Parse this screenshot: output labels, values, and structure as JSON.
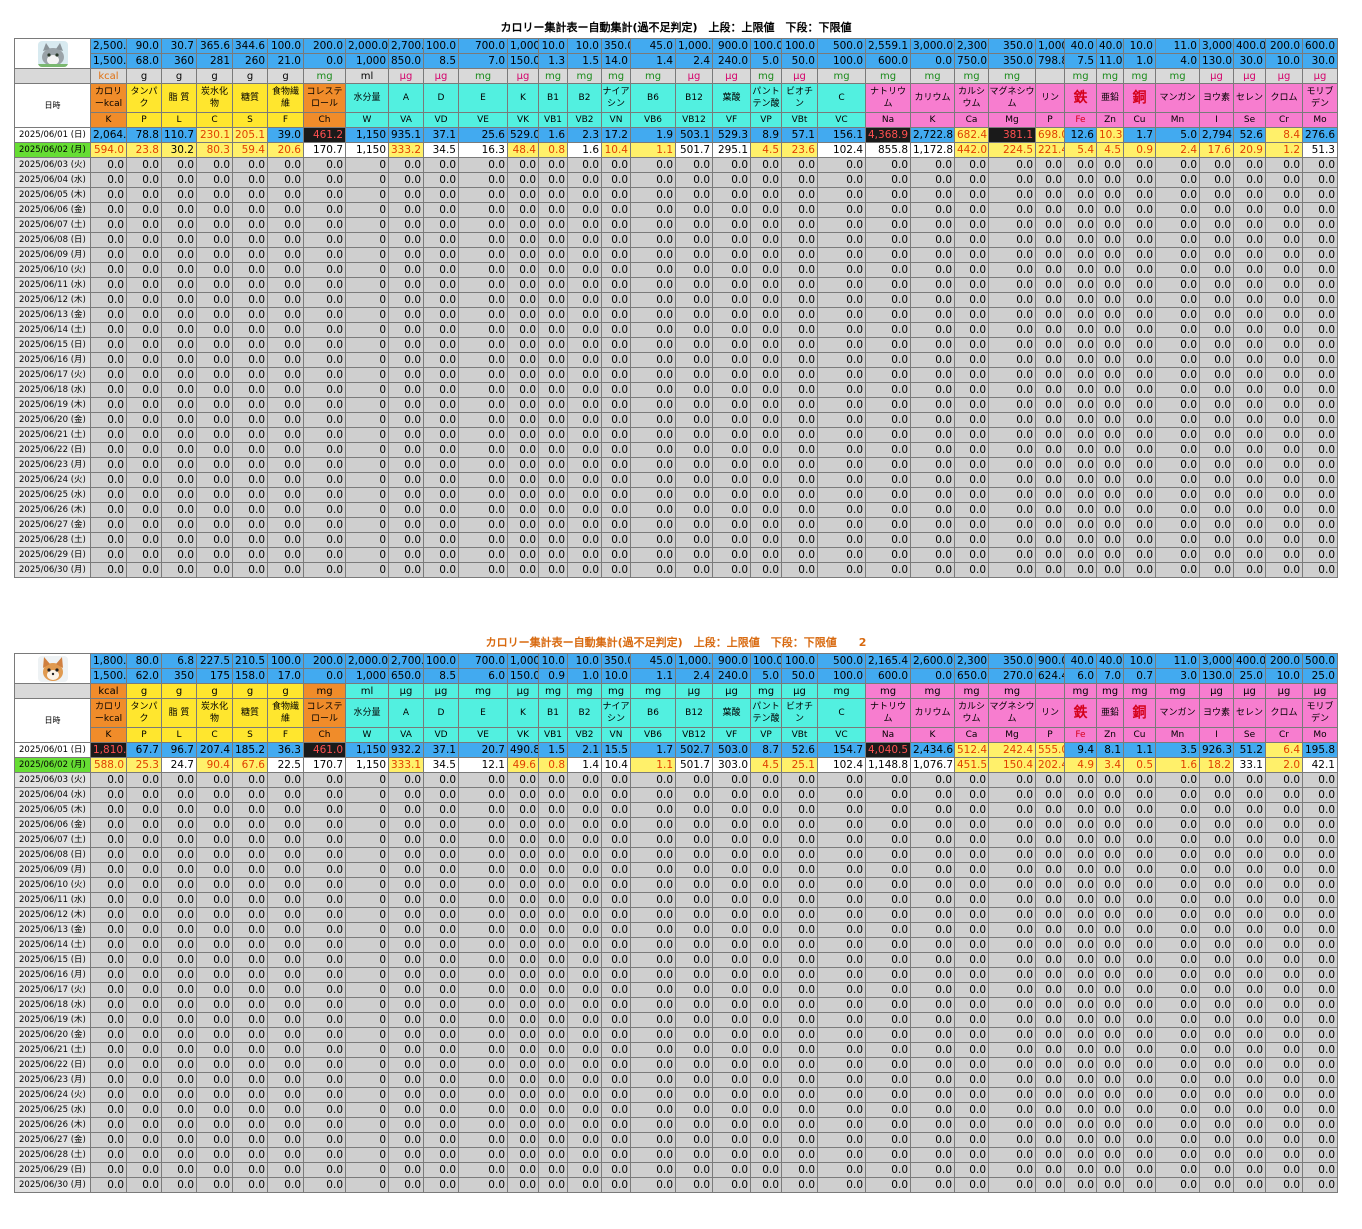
{
  "columns": [
    {
      "unit": "kcal",
      "name": "カロリーkcal",
      "abbr": "K",
      "color": "#f08c2a",
      "uc": "#e07010"
    },
    {
      "unit": "g",
      "name": "タンパク",
      "abbr": "P",
      "color": "#ffe62e",
      "uc": "#000"
    },
    {
      "unit": "g",
      "name": "脂 質",
      "abbr": "L",
      "color": "#ffe62e",
      "uc": "#000"
    },
    {
      "unit": "g",
      "name": "炭水化物",
      "abbr": "C",
      "color": "#ffe62e",
      "uc": "#000"
    },
    {
      "unit": "g",
      "name": "糖質",
      "abbr": "S",
      "color": "#ffe62e",
      "uc": "#000"
    },
    {
      "unit": "g",
      "name": "食物繊維",
      "abbr": "F",
      "color": "#ffe62e",
      "uc": "#000"
    },
    {
      "unit": "mg",
      "name": "コレステロール",
      "abbr": "Ch",
      "color": "#f08c2a",
      "uc": "#1a8a1a"
    },
    {
      "unit": "ml",
      "name": "水分量",
      "abbr": "W",
      "color": "#52f0e0",
      "uc": "#000"
    },
    {
      "unit": "μg",
      "name": "A",
      "abbr": "VA",
      "color": "#52f0e0",
      "uc": "#d4006a"
    },
    {
      "unit": "μg",
      "name": "D",
      "abbr": "VD",
      "color": "#52f0e0",
      "uc": "#d4006a"
    },
    {
      "unit": "mg",
      "name": "E",
      "abbr": "VE",
      "color": "#52f0e0",
      "uc": "#1a8a1a"
    },
    {
      "unit": "μg",
      "name": "K",
      "abbr": "VK",
      "color": "#52f0e0",
      "uc": "#d4006a"
    },
    {
      "unit": "mg",
      "name": "B1",
      "abbr": "VB1",
      "color": "#52f0e0",
      "uc": "#1a8a1a"
    },
    {
      "unit": "mg",
      "name": "B2",
      "abbr": "VB2",
      "color": "#52f0e0",
      "uc": "#1a8a1a"
    },
    {
      "unit": "mg",
      "name": "ナイアシン",
      "abbr": "VN",
      "color": "#52f0e0",
      "uc": "#1a8a1a"
    },
    {
      "unit": "mg",
      "name": "B6",
      "abbr": "VB6",
      "color": "#52f0e0",
      "uc": "#1a8a1a"
    },
    {
      "unit": "μg",
      "name": "B12",
      "abbr": "VB12",
      "color": "#52f0e0",
      "uc": "#d4006a"
    },
    {
      "unit": "μg",
      "name": "葉酸",
      "abbr": "VF",
      "color": "#52f0e0",
      "uc": "#d4006a"
    },
    {
      "unit": "mg",
      "name": "パントテン酸",
      "abbr": "VP",
      "color": "#52f0e0",
      "uc": "#1a8a1a"
    },
    {
      "unit": "μg",
      "name": "ビオチン",
      "abbr": "VBt",
      "color": "#52f0e0",
      "uc": "#d4006a"
    },
    {
      "unit": "mg",
      "name": "C",
      "abbr": "VC",
      "color": "#52f0e0",
      "uc": "#1a8a1a"
    },
    {
      "unit": "mg",
      "name": "ナトリウム",
      "abbr": "Na",
      "color": "#f77dcf",
      "uc": "#1a8a1a"
    },
    {
      "unit": "mg",
      "name": "カリウム",
      "abbr": "K",
      "color": "#f77dcf",
      "uc": "#1a8a1a"
    },
    {
      "unit": "mg",
      "name": "カルシウム",
      "abbr": "Ca",
      "color": "#f77dcf",
      "uc": "#1a8a1a"
    },
    {
      "unit": "mg",
      "name": "マグネシウム",
      "abbr": "Mg",
      "color": "#f77dcf",
      "uc": "#1a8a1a"
    },
    {
      "unit": "",
      "name": "リン",
      "abbr": "P",
      "color": "#f77dcf",
      "uc": "#000"
    },
    {
      "unit": "mg",
      "name": "鉄",
      "abbr": "Fe",
      "color": "#f77dcf",
      "uc": "#1a8a1a",
      "big": true
    },
    {
      "unit": "mg",
      "name": "亜鉛",
      "abbr": "Zn",
      "color": "#f77dcf",
      "uc": "#1a8a1a"
    },
    {
      "unit": "mg",
      "name": "銅",
      "abbr": "Cu",
      "color": "#f77dcf",
      "uc": "#1a8a1a",
      "big": true
    },
    {
      "unit": "mg",
      "name": "マンガン",
      "abbr": "Mn",
      "color": "#f77dcf",
      "uc": "#1a8a1a"
    },
    {
      "unit": "μg",
      "name": "ヨウ素",
      "abbr": "I",
      "color": "#f77dcf",
      "uc": "#d4006a"
    },
    {
      "unit": "μg",
      "name": "セレン",
      "abbr": "Se",
      "color": "#f77dcf",
      "uc": "#d4006a"
    },
    {
      "unit": "μg",
      "name": "クロム",
      "abbr": "Cr",
      "color": "#f77dcf",
      "uc": "#d4006a"
    },
    {
      "unit": "μg",
      "name": "モリブデン",
      "abbr": "Mo",
      "color": "#f77dcf",
      "uc": "#d4006a"
    }
  ],
  "date_header": "日時",
  "dates": [
    "2025/06/01 (日)",
    "2025/06/02 (月)",
    "2025/06/03 (火)",
    "2025/06/04 (水)",
    "2025/06/05 (木)",
    "2025/06/06 (金)",
    "2025/06/07 (土)",
    "2025/06/08 (日)",
    "2025/06/09 (月)",
    "2025/06/10 (火)",
    "2025/06/11 (水)",
    "2025/06/12 (木)",
    "2025/06/13 (金)",
    "2025/06/14 (土)",
    "2025/06/15 (日)",
    "2025/06/16 (月)",
    "2025/06/17 (火)",
    "2025/06/18 (水)",
    "2025/06/19 (木)",
    "2025/06/20 (金)",
    "2025/06/21 (土)",
    "2025/06/22 (日)",
    "2025/06/23 (月)",
    "2025/06/24 (火)",
    "2025/06/25 (水)",
    "2025/06/26 (木)",
    "2025/06/27 (金)",
    "2025/06/28 (土)",
    "2025/06/29 (日)",
    "2025/06/30 (月)"
  ],
  "zero_value": "0.0",
  "zero_water": "0",
  "sheets": [
    {
      "title": "カロリー集計表ー自動集計(過不足判定)　上段：上限値　下段：下限値",
      "avatar": "cat-icon",
      "upper": [
        "2,500.0",
        "90.0",
        "30.7",
        "365.6",
        "344.6",
        "100.0",
        "200.0",
        "2,000.0",
        "2,700.0",
        "100.0",
        "700.0",
        "1,000.0",
        "10.0",
        "10.0",
        "350.0",
        "45.0",
        "1,000.0",
        "900.0",
        "100.0",
        "100.0",
        "500.0",
        "2,559.1",
        "3,000.0",
        "2,300.0",
        "350.0",
        "1,000.0",
        "40.0",
        "40.0",
        "10.0",
        "11.0",
        "3,000.0",
        "400.0",
        "200.0",
        "600.0"
      ],
      "lower": [
        "1,500.0",
        "68.0",
        "360",
        "281",
        "260",
        "21.0",
        "0.0",
        "1,000",
        "850.0",
        "8.5",
        "7.0",
        "150.0",
        "1.3",
        "1.5",
        "14.0",
        "1.4",
        "2.4",
        "240.0",
        "5.0",
        "50.0",
        "100.0",
        "600.0",
        "0.0",
        "750.0",
        "350.0",
        "798.8",
        "7.5",
        "11.0",
        "1.0",
        "4.0",
        "130.0",
        "30.0",
        "10.0",
        "30.0"
      ],
      "day1": [
        "2,064.0",
        "78.8",
        "110.7",
        "230.1",
        "205.1",
        "39.0",
        "461.2",
        "1,150",
        "935.1",
        "37.1",
        "25.6",
        "529.0",
        "1.6",
        "2.3",
        "17.2",
        "1.9",
        "503.1",
        "529.3",
        "8.9",
        "57.1",
        "156.1",
        "4,368.9",
        "2,722.8",
        "682.4",
        "381.1",
        "698.0",
        "12.6",
        "10.3",
        "1.7",
        "5.0",
        "2,794.0",
        "52.6",
        "8.4",
        "276.6"
      ],
      "day1_flags": [
        "",
        "",
        "",
        "y",
        "y",
        "",
        "h",
        "",
        "",
        "",
        "",
        "",
        "",
        "",
        "",
        "",
        "",
        "",
        "",
        "",
        "",
        "h",
        "",
        "y",
        "h",
        "y",
        "",
        "y",
        "",
        "",
        "",
        "",
        "y",
        ""
      ],
      "day2": [
        "594.0",
        "23.8",
        "30.2",
        "80.3",
        "59.4",
        "20.6",
        "170.7",
        "1,150",
        "333.2",
        "34.5",
        "16.3",
        "48.4",
        "0.8",
        "1.6",
        "10.4",
        "1.1",
        "501.7",
        "295.1",
        "4.5",
        "23.6",
        "102.4",
        "855.8",
        "1,172.8",
        "442.0",
        "224.5",
        "221.4",
        "5.4",
        "4.5",
        "0.9",
        "2.4",
        "17.6",
        "20.9",
        "1.2",
        "51.3"
      ],
      "day2_flags": [
        "l",
        "l",
        "",
        "l",
        "l",
        "l",
        "w",
        "w",
        "l",
        "w",
        "w",
        "l",
        "l",
        "w",
        "l",
        "l",
        "w",
        "w",
        "l",
        "l",
        "w",
        "w",
        "w",
        "l",
        "l",
        "l",
        "l",
        "l",
        "l",
        "l",
        "l",
        "l",
        "l",
        "w"
      ]
    },
    {
      "title": "カロリー集計表ー自動集計(過不足判定)　上段：上限値　下段：下限値　　2",
      "avatar": "dog-icon",
      "upper": [
        "1,800.0",
        "80.0",
        "6.8",
        "227.5",
        "210.5",
        "100.0",
        "200.0",
        "2,000.0",
        "2,700.0",
        "100.0",
        "700.0",
        "1,000.0",
        "10.0",
        "10.0",
        "350.0",
        "45.0",
        "1,000.0",
        "900.0",
        "100.0",
        "100.0",
        "500.0",
        "2,165.4",
        "2,600.0",
        "2,300.0",
        "350.0",
        "900.0",
        "40.0",
        "40.0",
        "10.0",
        "11.0",
        "3,000.0",
        "400.0",
        "200.0",
        "500.0"
      ],
      "lower": [
        "1,500.0",
        "62.0",
        "350",
        "175",
        "158.0",
        "17.0",
        "0.0",
        "1,000",
        "650.0",
        "8.5",
        "6.0",
        "150.0",
        "0.9",
        "1.0",
        "10.0",
        "1.1",
        "2.4",
        "240.0",
        "5.0",
        "50.0",
        "100.0",
        "600.0",
        "0.0",
        "650.0",
        "270.0",
        "624.4",
        "6.0",
        "7.0",
        "0.7",
        "3.0",
        "130.0",
        "25.0",
        "10.0",
        "25.0"
      ],
      "day1": [
        "1,810.0",
        "67.7",
        "96.7",
        "207.4",
        "185.2",
        "36.3",
        "461.0",
        "1,150",
        "932.2",
        "37.1",
        "20.7",
        "490.8",
        "1.5",
        "2.1",
        "15.5",
        "1.7",
        "502.7",
        "503.0",
        "8.7",
        "52.6",
        "154.7",
        "4,040.5",
        "2,434.6",
        "512.4",
        "242.4",
        "555.0",
        "9.4",
        "8.1",
        "1.1",
        "3.5",
        "926.3",
        "51.2",
        "6.4",
        "195.8"
      ],
      "day1_flags": [
        "h",
        "",
        "",
        "",
        "",
        "",
        "h",
        "",
        "",
        "",
        "",
        "",
        "",
        "",
        "",
        "",
        "",
        "",
        "",
        "",
        "",
        "h",
        "",
        "y",
        "y",
        "y",
        "",
        "",
        "",
        "",
        "",
        "",
        "y",
        ""
      ],
      "day2": [
        "588.0",
        "25.3",
        "24.7",
        "90.4",
        "67.6",
        "22.5",
        "170.7",
        "1,150",
        "333.1",
        "34.5",
        "12.1",
        "49.6",
        "0.8",
        "1.4",
        "10.4",
        "1.1",
        "501.7",
        "303.0",
        "4.5",
        "25.1",
        "102.4",
        "1,148.8",
        "1,076.7",
        "451.5",
        "150.4",
        "202.4",
        "4.9",
        "3.4",
        "0.5",
        "1.6",
        "18.2",
        "33.1",
        "2.0",
        "42.1"
      ],
      "day2_flags": [
        "l",
        "l",
        "w",
        "l",
        "l",
        "w",
        "w",
        "w",
        "l",
        "w",
        "w",
        "l",
        "l",
        "w",
        "w",
        "l",
        "w",
        "w",
        "l",
        "l",
        "w",
        "w",
        "w",
        "l",
        "l",
        "l",
        "l",
        "l",
        "l",
        "l",
        "l",
        "w",
        "l",
        "w"
      ]
    }
  ]
}
